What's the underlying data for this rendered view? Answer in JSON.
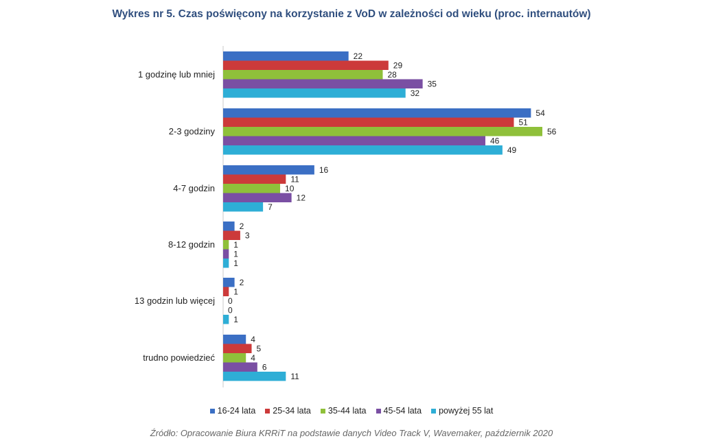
{
  "chart_data": {
    "type": "bar",
    "orientation": "horizontal",
    "title": "Wykres nr 5. Czas poświęcony na korzystanie z VoD w zależności od wieku (proc. internautów)",
    "categories": [
      "1 godzinę lub mniej",
      "2-3 godziny",
      "4-7 godzin",
      "8-12 godzin",
      "13 godzin lub więcej",
      "trudno powiedzieć"
    ],
    "series": [
      {
        "name": "16-24 lata",
        "color": "#3b6fc4",
        "values": [
          22,
          54,
          16,
          2,
          2,
          4
        ]
      },
      {
        "name": "25-34 lata",
        "color": "#cc3a3a",
        "values": [
          29,
          51,
          11,
          3,
          1,
          5
        ]
      },
      {
        "name": "35-44 lata",
        "color": "#8fc03a",
        "values": [
          28,
          56,
          10,
          1,
          0,
          4
        ]
      },
      {
        "name": "45-54 lata",
        "color": "#7a4fa3",
        "values": [
          35,
          46,
          12,
          1,
          0,
          6
        ]
      },
      {
        "name": "powyżej 55 lat",
        "color": "#2eaed6",
        "values": [
          32,
          49,
          7,
          1,
          1,
          11
        ]
      }
    ],
    "xlim": [
      0,
      56
    ],
    "grid": false,
    "legend_position": "bottom",
    "data_labels": true
  },
  "source": "Źródło: Opracowanie Biura KRRiT na podstawie danych Video Track V, Wavemaker, październik 2020"
}
